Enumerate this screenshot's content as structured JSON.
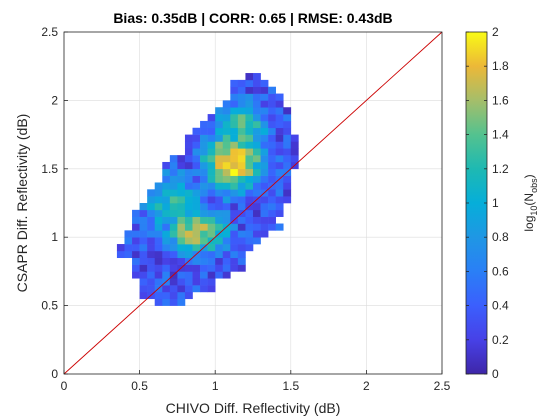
{
  "chart_data": {
    "type": "heatmap",
    "title": "Bias: 0.35dB | CORR: 0.65 | RMSE: 0.43dB",
    "xlabel": "CHIVO Diff. Reflectivity (dB)",
    "ylabel": "CSAPR Diff. Reflectivity (dB)",
    "xlim": [
      0,
      2.5
    ],
    "ylim": [
      0,
      2.5
    ],
    "x_ticks": [
      "0",
      "0.5",
      "1",
      "1.5",
      "2",
      "2.5"
    ],
    "y_ticks": [
      "0",
      "0.5",
      "1",
      "1.5",
      "2",
      "2.5"
    ],
    "grid": true,
    "reference_line": {
      "from": [
        0,
        0
      ],
      "to": [
        2.5,
        2.5
      ],
      "color": "#cc0000"
    },
    "bin_size": 0.05,
    "colorbar": {
      "label_main": "log",
      "label_sub": "10",
      "label_paren": "(N",
      "label_sub2": "obs",
      "label_close": ")",
      "range": [
        0,
        2
      ],
      "ticks": [
        "0",
        "0.2",
        "0.4",
        "0.6",
        "0.8",
        "1",
        "1.2",
        "1.4",
        "1.6",
        "1.8",
        "2"
      ],
      "colormap": "parula"
    },
    "cloud_shape": {
      "outline": [
        [
          0.55,
          0.55
        ],
        [
          0.73,
          0.48
        ],
        [
          0.95,
          0.62
        ],
        [
          1.2,
          0.8
        ],
        [
          1.38,
          1.05
        ],
        [
          1.48,
          1.25
        ],
        [
          1.55,
          1.55
        ],
        [
          1.52,
          1.85
        ],
        [
          1.42,
          2.05
        ],
        [
          1.28,
          2.22
        ],
        [
          1.12,
          2.1
        ],
        [
          0.98,
          1.9
        ],
        [
          0.8,
          1.72
        ],
        [
          0.62,
          1.45
        ],
        [
          0.45,
          1.15
        ],
        [
          0.38,
          0.95
        ],
        [
          0.45,
          0.7
        ]
      ],
      "peaks": [
        {
          "x": 1.12,
          "y": 1.55,
          "sx": 0.16,
          "sy": 0.18,
          "amp": 1.95
        },
        {
          "x": 0.88,
          "y": 1.05,
          "sx": 0.17,
          "sy": 0.14,
          "amp": 1.65
        },
        {
          "x": 1.18,
          "y": 1.8,
          "sx": 0.14,
          "sy": 0.16,
          "amp": 1.35
        },
        {
          "x": 0.72,
          "y": 1.25,
          "sx": 0.16,
          "sy": 0.2,
          "amp": 1.15
        }
      ],
      "floor": 0.35,
      "noise": 0.55,
      "seed": 7
    }
  }
}
